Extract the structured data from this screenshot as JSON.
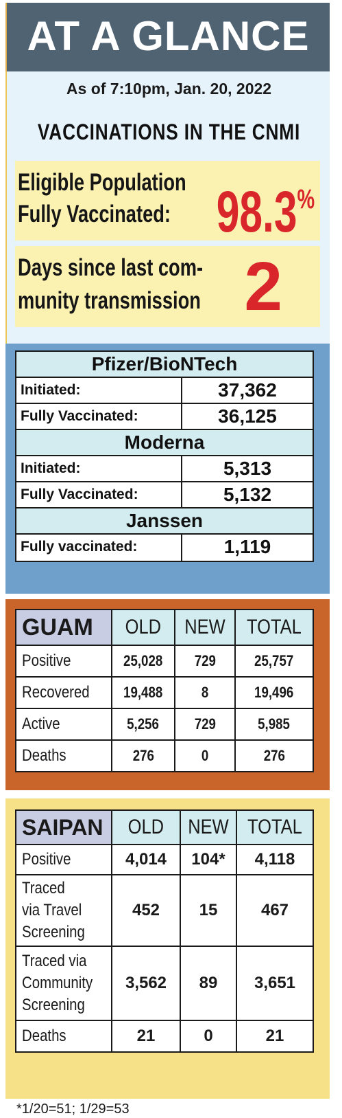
{
  "header": {
    "title": "AT A GLANCE",
    "as_of": "As of 7:10pm, Jan. 20, 2022",
    "section_title": "VACCINATIONS IN THE CNMI"
  },
  "eligible": {
    "label_line1": "Eligible Population",
    "label_line2": "Fully Vaccinated:",
    "value": "98.3",
    "unit": "%"
  },
  "days_since": {
    "label_line1": "Days since last com-",
    "label_line2": "munity transmission",
    "value": "2"
  },
  "vaccines": {
    "pfizer": {
      "name": "Pfizer/BioNTech",
      "initiated_label": "Initiated:",
      "initiated": "37,362",
      "fully_label": "Fully Vaccinated:",
      "fully": "36,125"
    },
    "moderna": {
      "name": "Moderna",
      "initiated_label": "Initiated:",
      "initiated": "5,313",
      "fully_label": "Fully Vaccinated:",
      "fully": "5,132"
    },
    "janssen": {
      "name": "Janssen",
      "fully_label": "Fully vaccinated:",
      "fully": "1,119"
    }
  },
  "guam": {
    "name": "GUAM",
    "columns": [
      "OLD",
      "NEW",
      "TOTAL"
    ],
    "rows": [
      {
        "label": "Positive",
        "old": "25,028",
        "new": "729",
        "total": "25,757"
      },
      {
        "label": "Recovered",
        "old": "19,488",
        "new": "8",
        "total": "19,496"
      },
      {
        "label": "Active",
        "old": "5,256",
        "new": "729",
        "total": "5,985"
      },
      {
        "label": "Deaths",
        "old": "276",
        "new": "0",
        "total": "276"
      }
    ]
  },
  "saipan": {
    "name": "SAIPAN",
    "columns": [
      "OLD",
      "NEW",
      "TOTAL"
    ],
    "rows": [
      {
        "label": "Positive",
        "old": "4,014",
        "new": "104*",
        "total": "4,118"
      },
      {
        "label_lines": [
          "Traced",
          "via Travel",
          "Screening"
        ],
        "old": "452",
        "new": "15",
        "total": "467"
      },
      {
        "label_lines": [
          "Traced via",
          "Community",
          "Screening"
        ],
        "old": "3,562",
        "new": "89",
        "total": "3,651"
      },
      {
        "label": "Deaths",
        "old": "21",
        "new": "0",
        "total": "21"
      }
    ]
  },
  "footnote": "*1/20=51; 1/29=53",
  "colors": {
    "banner": "#4f6373",
    "info_background": "#e6f3fb",
    "highlight_box": "#fbf2b2",
    "highlight_number": "#d8262a",
    "vaccine_frame": "#6f9fcb",
    "guam_frame": "#c9642a",
    "saipan_frame": "#f6e088",
    "table_header": "#d3ecef",
    "table_name_cell": "#c9cde4"
  }
}
